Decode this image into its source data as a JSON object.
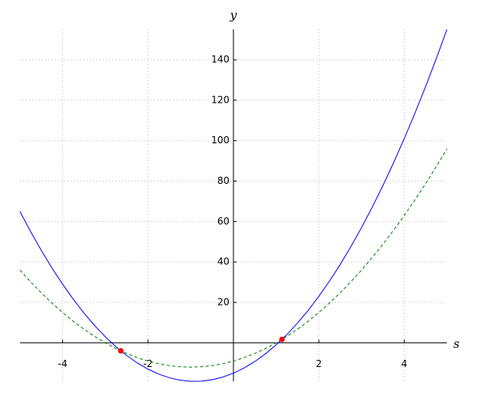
{
  "chart_data": {
    "type": "line",
    "x": [
      -5,
      -4.75,
      -4.5,
      -4.25,
      -4,
      -3.75,
      -3.5,
      -3.25,
      -3,
      -2.75,
      -2.5,
      -2.25,
      -2,
      -1.75,
      -1.5,
      -1.25,
      -1,
      -0.75,
      -0.5,
      -0.25,
      0,
      0.25,
      0.5,
      0.75,
      1,
      1.25,
      1.5,
      1.75,
      2,
      2.25,
      2.5,
      2.75,
      3,
      3.25,
      3.5,
      3.75,
      4,
      4.25,
      4.5,
      4.75,
      5
    ],
    "series": [
      {
        "color": "#0000ff",
        "linestyle": "solid",
        "values": [
          65,
          55.0625,
          45.75,
          37.0625,
          29,
          21.5625,
          14.75,
          8.5625,
          3,
          -1.9375,
          -6.25,
          -9.9375,
          -13,
          -15.4375,
          -17.25,
          -18.4375,
          -19,
          -18.9375,
          -18.25,
          -16.9375,
          -15,
          -12.4375,
          -9.25,
          -5.4375,
          -1,
          4.0625,
          9.75,
          16.0625,
          23,
          30.5625,
          38.75,
          47.5625,
          57,
          67.0625,
          77.75,
          89.0625,
          101,
          113.5625,
          126.75,
          140.5625,
          155
        ]
      },
      {
        "color": "#007f00",
        "linestyle": "dashed",
        "values": [
          36,
          30.1875,
          24.75,
          19.6875,
          15,
          10.6875,
          6.75,
          3.1875,
          0,
          -2.8125,
          -5.25,
          -7.3125,
          -9,
          -10.3125,
          -11.25,
          -11.8125,
          -12,
          -11.8125,
          -11.25,
          -10.3125,
          -9,
          -7.3125,
          -5.25,
          -2.8125,
          0,
          3.1875,
          6.75,
          10.6875,
          15,
          19.6875,
          24.75,
          30.1875,
          36,
          42.1875,
          48.75,
          55.6875,
          63,
          70.6875,
          78.75,
          87.1875,
          96
        ]
      }
    ],
    "points": {
      "color": "#ff0000",
      "x": [
        -2.637,
        1.137
      ],
      "values": [
        -3.96,
        1.7
      ]
    },
    "xlabel": "s",
    "ylabel": "y",
    "xlim": [
      -5,
      5
    ],
    "ylim": [
      -19,
      155
    ],
    "xticks": [
      -4,
      -2,
      2,
      4
    ],
    "yticks": [
      20,
      40,
      60,
      80,
      100,
      120,
      140
    ],
    "grid": true
  }
}
